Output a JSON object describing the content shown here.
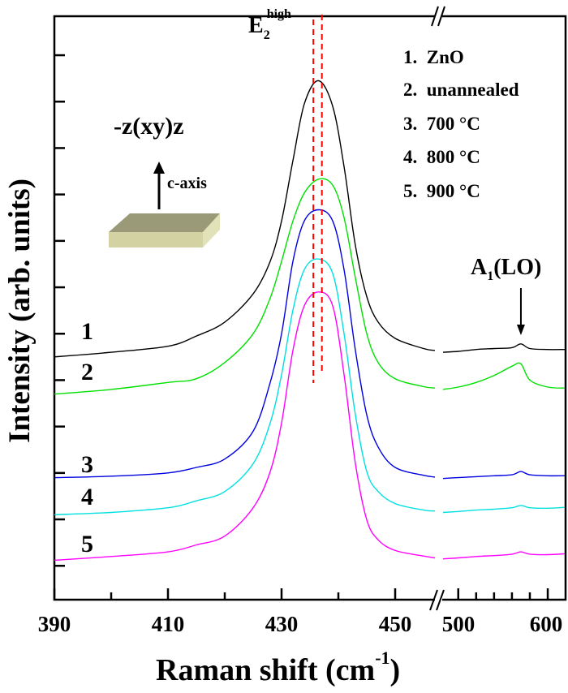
{
  "chart_data": {
    "type": "line",
    "xlabel": "Raman shift (cm",
    "xlabel_sup": "-1",
    "xlabel_end": ")",
    "ylabel": "Intensity (arb. units)",
    "x_broken_axis": true,
    "segments": [
      {
        "xlim": [
          390,
          457
        ],
        "ticks_major": [
          390,
          410,
          430,
          450
        ],
        "ticks_minor": [
          400,
          420,
          440
        ]
      },
      {
        "xlim": [
          483,
          619
        ],
        "ticks_major": [
          500,
          600
        ],
        "ticks_minor": [
          520,
          540,
          560,
          580
        ]
      }
    ],
    "tick_labels": [
      "390",
      "410",
      "430",
      "450",
      "500",
      "600"
    ],
    "ylim": [
      -0.73,
      11.84
    ],
    "y_ticks": [
      0,
      1,
      2,
      3,
      4,
      5,
      6,
      7,
      8,
      9,
      10,
      11
    ],
    "y_tick_labels_shown": false,
    "grid": false,
    "x_left": [
      390,
      400,
      410,
      415,
      420,
      425,
      428,
      430,
      432,
      434,
      436.5,
      439,
      441,
      443,
      445,
      447,
      450,
      455,
      457
    ],
    "x_right": [
      483,
      500,
      520,
      540,
      560,
      570,
      580,
      600,
      619
    ],
    "series": [
      {
        "name": "1. ZnO",
        "label": "1",
        "color": "#000000",
        "y_left": [
          4.5,
          4.6,
          4.73,
          4.95,
          5.25,
          5.86,
          6.56,
          7.43,
          8.73,
          9.95,
          10.45,
          9.9,
          8.6,
          6.9,
          5.8,
          5.25,
          4.9,
          4.68,
          4.64
        ],
        "y_right": [
          4.6,
          4.62,
          4.66,
          4.68,
          4.7,
          4.78,
          4.68,
          4.66,
          4.66
        ]
      },
      {
        "name": "2. unannealed",
        "label": "2",
        "color": "#00e000",
        "y_left": [
          3.7,
          3.8,
          3.95,
          4.03,
          4.38,
          5.0,
          5.77,
          6.56,
          7.43,
          8.03,
          8.33,
          8.2,
          7.5,
          6.2,
          5.0,
          4.38,
          4.03,
          3.86,
          3.83
        ],
        "y_right": [
          3.8,
          3.85,
          3.95,
          4.1,
          4.3,
          4.35,
          4.0,
          3.85,
          3.83
        ]
      },
      {
        "name": "3. 700 °C",
        "label": "3",
        "color": "#0000e0",
        "y_left": [
          1.9,
          1.93,
          2.0,
          2.12,
          2.3,
          2.9,
          3.95,
          5.0,
          6.56,
          7.43,
          7.67,
          7.43,
          6.38,
          4.64,
          3.25,
          2.56,
          2.12,
          1.95,
          1.91
        ],
        "y_right": [
          1.88,
          1.9,
          1.92,
          1.94,
          1.96,
          2.03,
          1.96,
          1.94,
          1.94
        ]
      },
      {
        "name": "4. 800 °C",
        "label": "4",
        "color": "#00e0e0",
        "y_left": [
          1.1,
          1.15,
          1.25,
          1.4,
          1.6,
          2.2,
          3.08,
          4.12,
          5.51,
          6.38,
          6.61,
          6.3,
          5.0,
          3.25,
          2.03,
          1.6,
          1.34,
          1.2,
          1.18
        ],
        "y_right": [
          1.15,
          1.17,
          1.2,
          1.22,
          1.25,
          1.3,
          1.25,
          1.24,
          1.26
        ]
      },
      {
        "name": "5. 900 °C",
        "label": "5",
        "color": "#ff00ff",
        "y_left": [
          0.12,
          0.2,
          0.3,
          0.45,
          0.64,
          1.25,
          2.03,
          3.08,
          4.64,
          5.6,
          5.9,
          5.6,
          4.12,
          2.2,
          0.99,
          0.56,
          0.33,
          0.21,
          0.17
        ],
        "y_right": [
          0.15,
          0.17,
          0.2,
          0.22,
          0.25,
          0.3,
          0.25,
          0.24,
          0.26
        ]
      }
    ],
    "legend": {
      "placement": "top-right",
      "entries": [
        "1.  ZnO",
        "2.  unannealed",
        "3.  700 °C",
        "4.  800 °C",
        "5.  900 °C"
      ]
    },
    "annotations": {
      "e2_main": "E",
      "e2_sub": "2",
      "e2_sup": "high",
      "e2_lines_x": [
        435.6,
        437.1
      ],
      "e2_line_color": "#ff0000",
      "geometry": "-z(xy)z",
      "c_axis": "c-axis",
      "a1_main": "A",
      "a1_sub": "1",
      "a1_end": "(LO)",
      "a1_arrow_x": 570,
      "slab_colors": {
        "top": "#9a9a78",
        "front": "#d2d2a2",
        "side": "#e2e2b8"
      }
    }
  }
}
